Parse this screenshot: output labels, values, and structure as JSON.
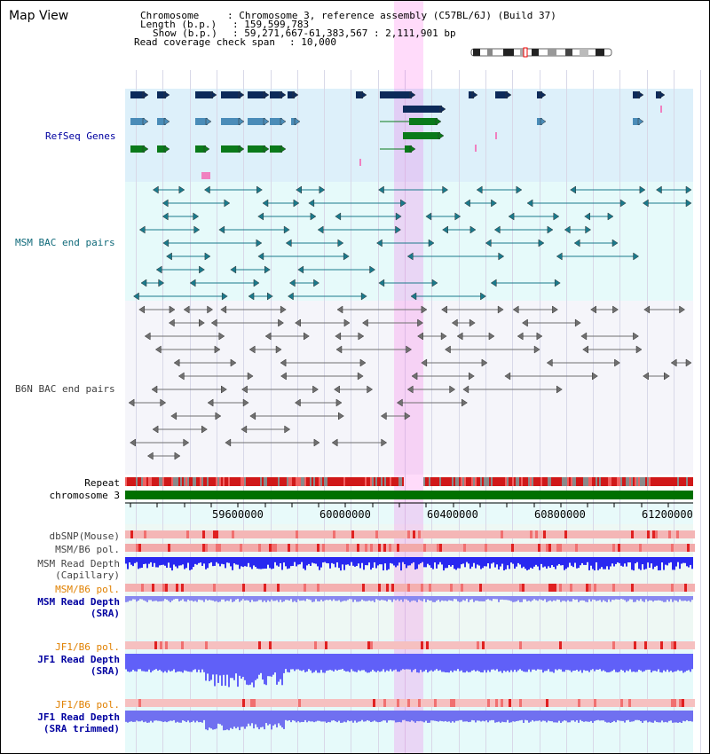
{
  "view": {
    "title": "Map View"
  },
  "header": {
    "chromosome_key": "Chromosome",
    "chromosome_value": ": Chromosome 3, reference assembly (C57BL/6J) (Build 37)",
    "length_key": "Length (b.p.)",
    "length_value": ": 159,599,783",
    "show_key": "Show (b.p.)",
    "show_value": ": 59,271,667-61,383,567 : 2,111,901 bp",
    "coverage_key": "Read coverage check span",
    "coverage_value": ": 10,000"
  },
  "tracks": {
    "refseq": "RefSeq Genes",
    "msm_bac": "MSM BAC end pairs",
    "b6n_bac": "B6N BAC end pairs",
    "repeat": "Repeat",
    "chromosome": "chromosome 3",
    "dbsnp": "dbSNP(Mouse)",
    "msm_b6_pol_1": "MSM/B6 pol.",
    "msm_depth_cap_1": "MSM Read Depth",
    "msm_depth_cap_2": "(Capillary)",
    "msm_b6_pol_2": "MSM/B6 pol.",
    "msm_depth_sra_1": "MSM Read Depth",
    "msm_depth_sra_2": "(SRA)",
    "jf1_b6_pol_1": "JF1/B6 pol.",
    "jf1_depth_sra_1": "JF1 Read Depth",
    "jf1_depth_sra_2": "(SRA)",
    "jf1_b6_pol_2": "JF1/B6 pol.",
    "jf1_depth_trim_1": "JF1 Read Depth",
    "jf1_depth_trim_2": "(SRA trimmed)"
  },
  "ruler": {
    "ticks": [
      "59600000",
      "60000000",
      "60400000",
      "60800000",
      "61200000"
    ]
  },
  "colors": {
    "refseq_bg": "#ddf0fa",
    "msm_bg": "#e6fafa",
    "b6n_bg": "#f3f3f8",
    "highlight": "#ffd6f4",
    "chromosome_bar": "#007000",
    "depth_blue": "#2020f0",
    "pol_red": "#e83030"
  }
}
